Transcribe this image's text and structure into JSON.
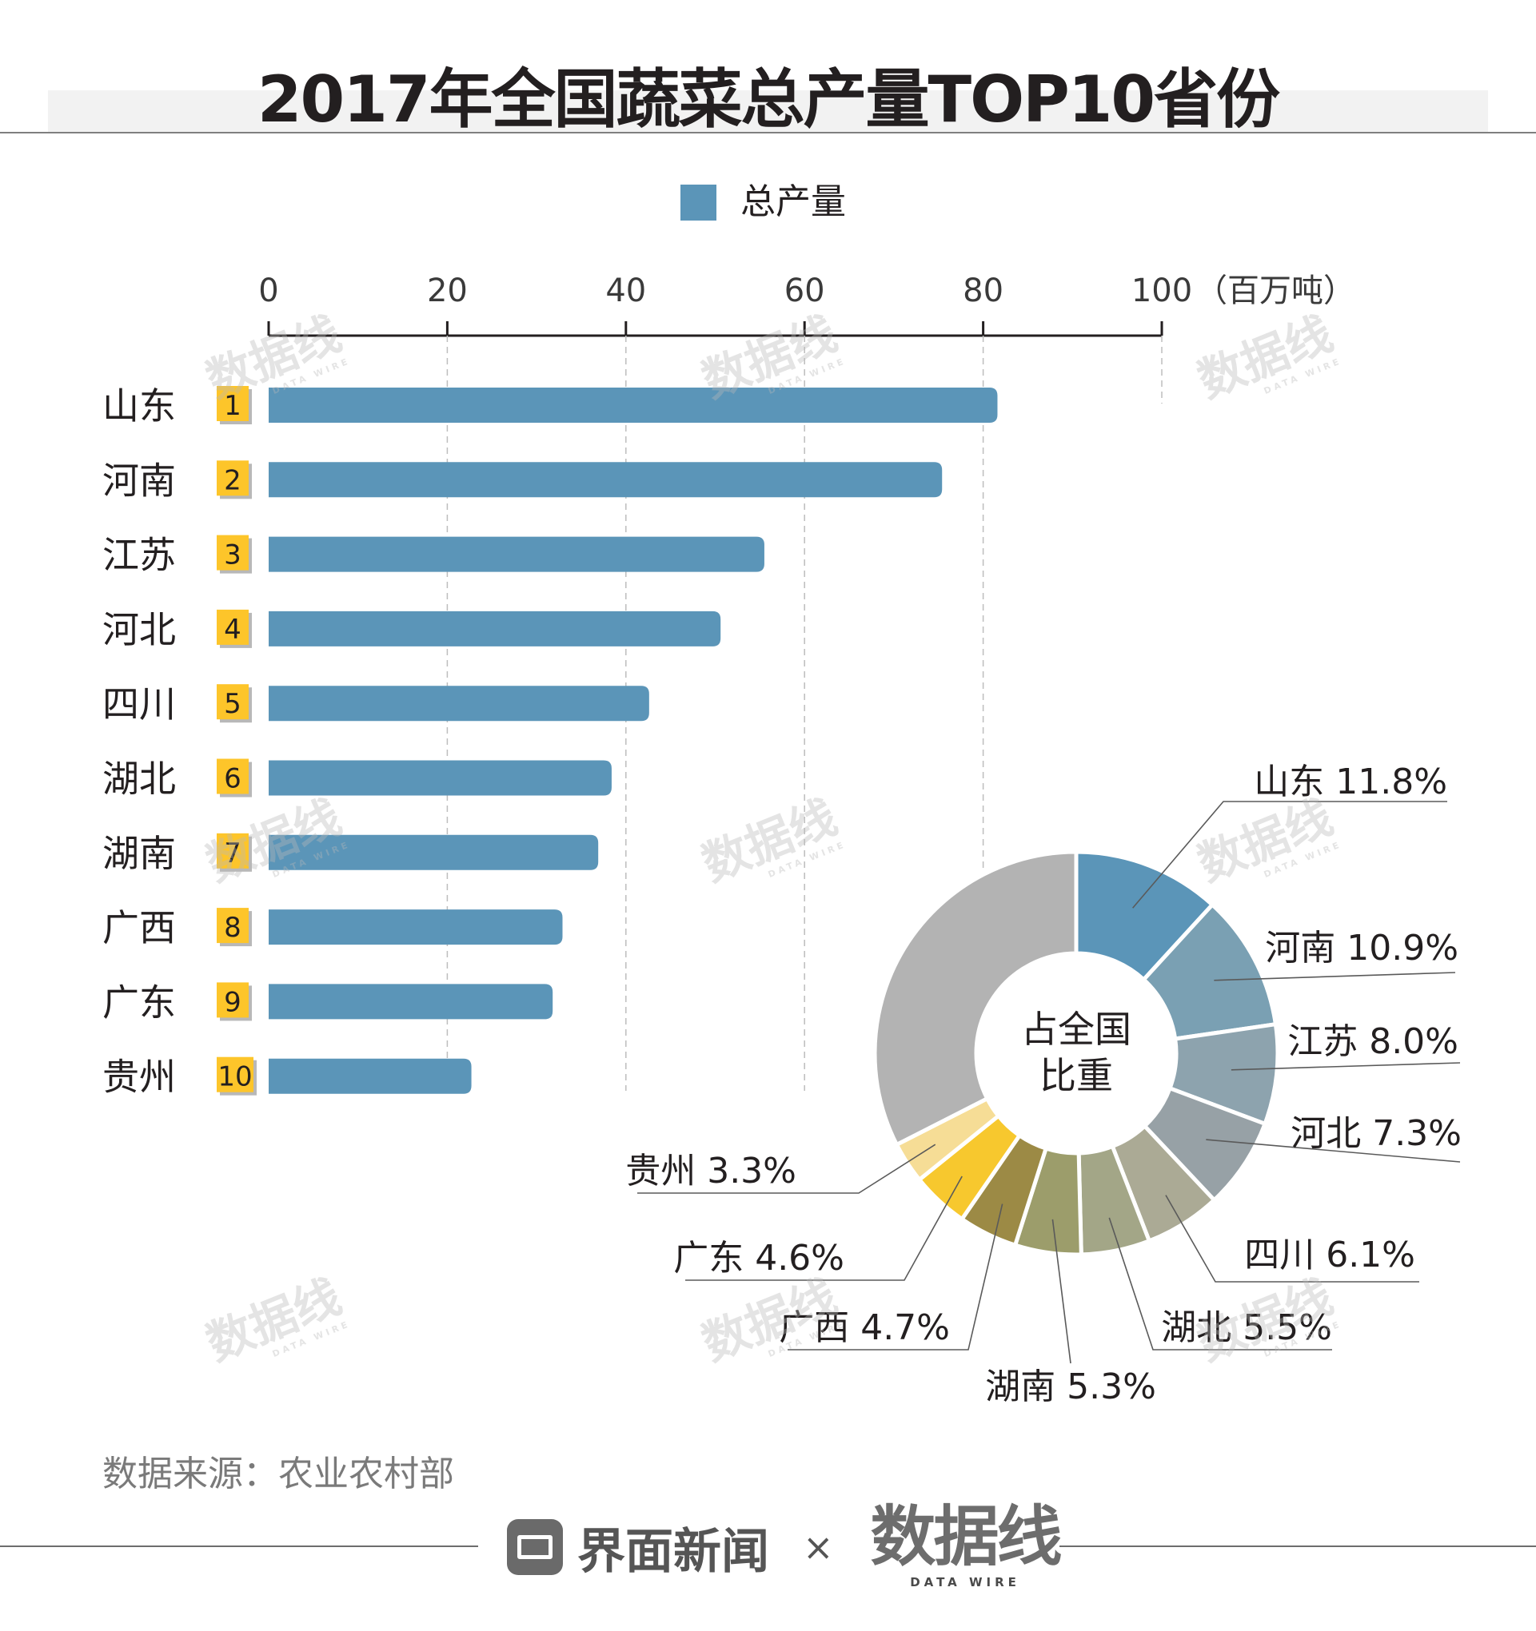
{
  "title": "2017年全国蔬菜总产量TOP10省份",
  "colors": {
    "bar": "#5b95b8",
    "badge": "#fdc52a",
    "badge_shadow": "#b8b8b8",
    "rest": "#b3b3b3",
    "pie": [
      "#5b95b8",
      "#7aa0b3",
      "#8da3ae",
      "#97a1a6",
      "#abaa95",
      "#a3a687",
      "#9c9d6b",
      "#9c8a45",
      "#f7c82e",
      "#f6dd96",
      "#e2e2e2"
    ]
  },
  "chart_data": [
    {
      "type": "bar",
      "orientation": "horizontal",
      "legend": "总产量",
      "unit": "（百万吨）",
      "axis": {
        "min": 0,
        "max": 100,
        "ticks": [
          0,
          20,
          40,
          60,
          80,
          100
        ]
      },
      "categories": [
        "山东",
        "河南",
        "江苏",
        "河北",
        "四川",
        "湖北",
        "湖南",
        "广西",
        "广东",
        "贵州"
      ],
      "ranks": [
        "1",
        "2",
        "3",
        "4",
        "5",
        "6",
        "7",
        "8",
        "9",
        "10"
      ],
      "values": [
        81.6,
        75.4,
        55.5,
        50.6,
        42.6,
        38.4,
        36.9,
        32.9,
        31.8,
        22.7
      ]
    },
    {
      "type": "pie",
      "center_label": [
        "占全国",
        "比重"
      ],
      "labels": [
        "山东",
        "河南",
        "江苏",
        "河北",
        "四川",
        "湖北",
        "湖南",
        "广西",
        "广东",
        "贵州"
      ],
      "values": [
        11.8,
        10.9,
        8.0,
        7.3,
        6.1,
        5.5,
        5.3,
        4.7,
        4.6,
        3.3
      ],
      "value_labels": [
        "山东 11.8%",
        "河南 10.9%",
        "江苏 8.0%",
        "河北 7.3%",
        "四川 6.1%",
        "湖北 5.5%",
        "湖南 5.3%",
        "广西 4.7%",
        "广东 4.6%",
        "贵州 3.3%"
      ]
    }
  ],
  "source": "数据来源：农业农村部",
  "footer": {
    "brand": "界面新闻",
    "times": "×",
    "brand2": "数据线",
    "brand2_sub": "DATA WIRE"
  },
  "watermark": {
    "main": "数据线",
    "sub": "DATA WIRE"
  }
}
